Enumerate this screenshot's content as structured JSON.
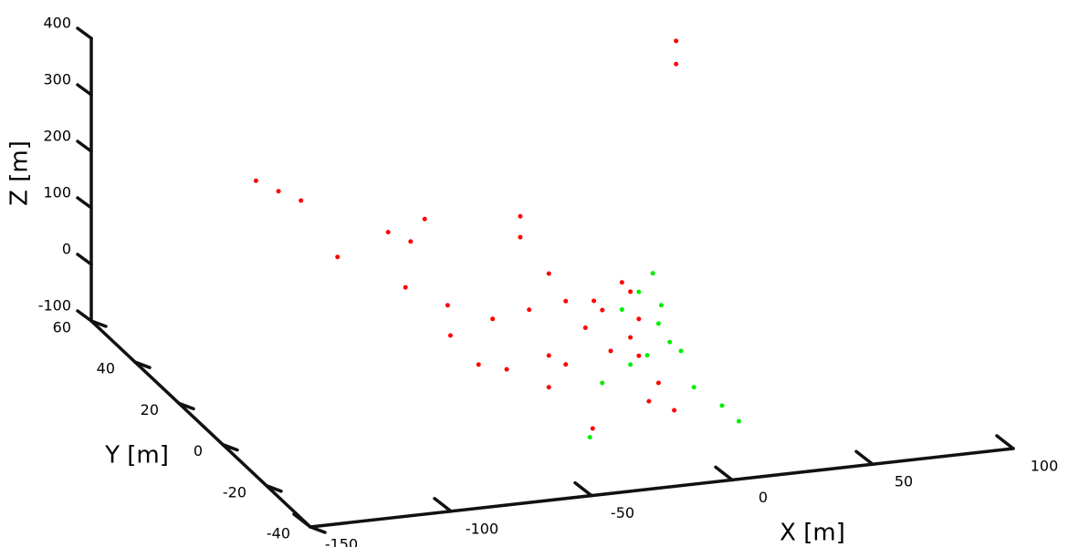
{
  "chart_data": {
    "type": "scatter3d",
    "xlabel": "X [m]",
    "ylabel": "Y [m]",
    "zlabel": "Z [m]",
    "xlim": [
      -150,
      100
    ],
    "ylim": [
      -40,
      60
    ],
    "zlim": [
      -100,
      400
    ],
    "xticks": [
      -150,
      -100,
      -50,
      0,
      50,
      100
    ],
    "yticks": [
      -40,
      -20,
      0,
      20,
      40,
      60
    ],
    "zticks": [
      -100,
      0,
      100,
      200,
      300,
      400
    ],
    "series": [
      {
        "color": "#ff0000",
        "x": [
          58,
          58,
          -107,
          -91,
          -99,
          -60,
          -47,
          -52,
          -13,
          -13,
          -78,
          -85,
          -70,
          -54,
          -69,
          -59,
          -34,
          -28,
          -21,
          -28,
          -34,
          -15,
          -8,
          -5,
          -2,
          5,
          -5,
          -34,
          -14,
          -18,
          -2,
          -12,
          -41,
          -49,
          -34,
          -5
        ],
        "y": [
          60,
          60,
          40,
          40,
          40,
          40,
          40,
          40,
          40,
          40,
          40,
          0,
          0,
          0,
          0,
          0,
          0,
          0,
          0,
          0,
          0,
          0,
          0,
          0,
          0,
          0,
          -20,
          -20,
          -20,
          0,
          0,
          0,
          0,
          0,
          0,
          0
        ],
        "z": [
          280,
          239,
          197,
          153,
          174,
          80,
          96,
          59,
          82,
          45,
          46,
          142,
          102,
          69,
          48,
          -9,
          138,
          86,
          35,
          -26,
          -7,
          63,
          108,
          9,
          -25,
          -77,
          -47,
          -63,
          -26,
          81,
          40,
          -11,
          78,
          -23,
          -63,
          90
        ]
      },
      {
        "color": "#00ee00",
        "x": [
          -2,
          3,
          5,
          9,
          1,
          13,
          2,
          12,
          18,
          -35,
          -15,
          -8,
          6,
          -5
        ],
        "y": [
          0,
          0,
          0,
          0,
          0,
          0,
          -20,
          -20,
          -20,
          -20,
          0,
          0,
          0,
          0
        ],
        "z": [
          88,
          118,
          28,
          -7,
          -26,
          -25,
          -10,
          -48,
          -79,
          -78,
          -66,
          60,
          60,
          -39
        ]
      }
    ]
  }
}
